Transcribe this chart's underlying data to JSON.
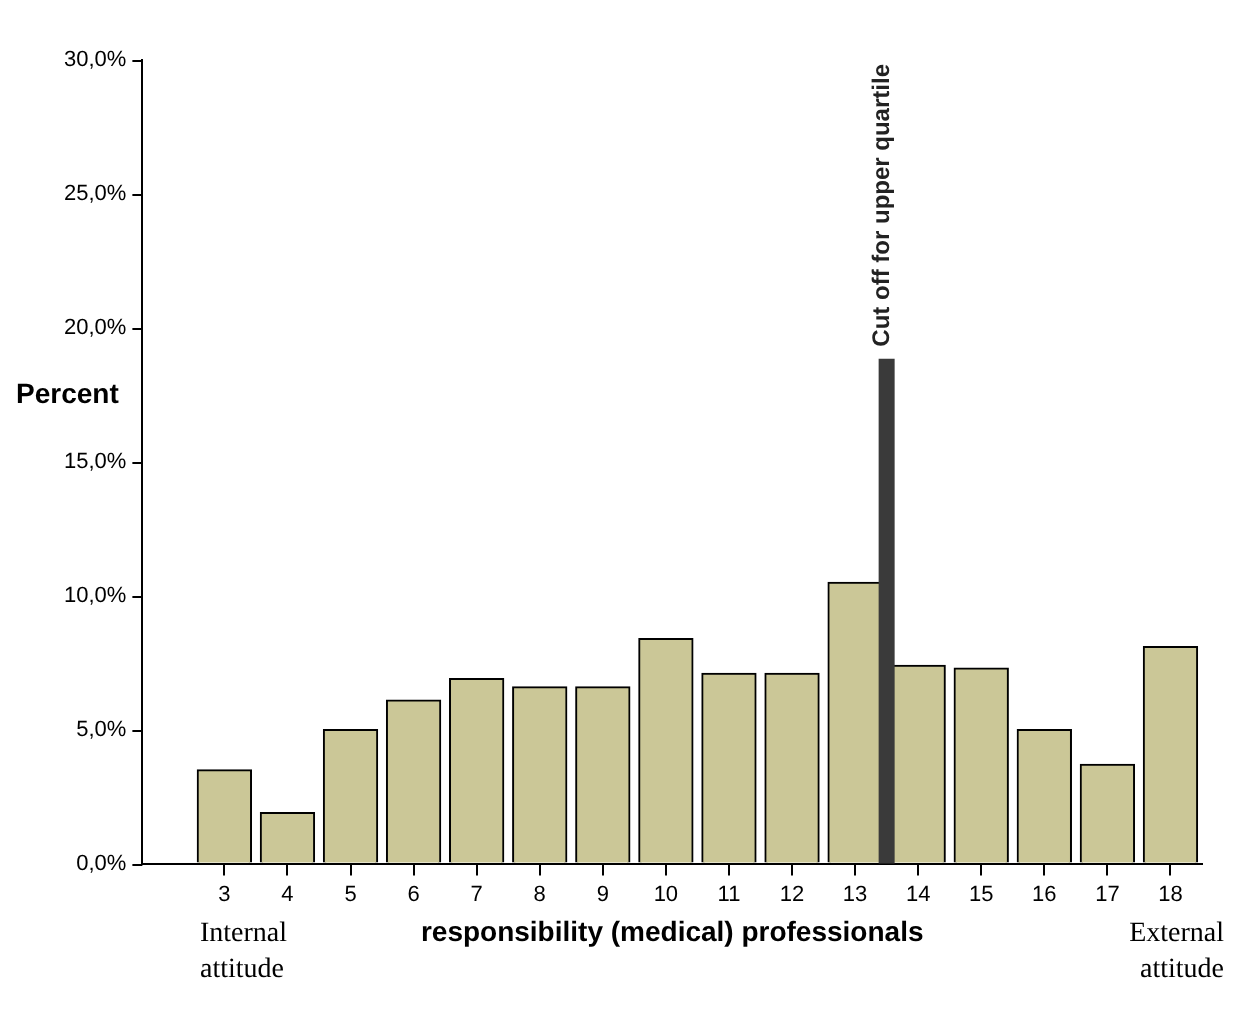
{
  "chart_data": {
    "type": "bar",
    "xlabel": "responsibility (medical) professionals",
    "ylabel": "Percent",
    "x": [
      3,
      4,
      5,
      6,
      7,
      8,
      9,
      10,
      11,
      12,
      13,
      14,
      15,
      16,
      17,
      18
    ],
    "values": [
      3.5,
      1.9,
      5.0,
      6.1,
      6.9,
      6.6,
      6.6,
      8.4,
      7.1,
      7.1,
      10.5,
      7.4,
      7.3,
      5.0,
      3.7,
      8.1
    ],
    "color": "#cbc797",
    "xlim": [
      1.7,
      18.5
    ],
    "xticks": [
      3,
      4,
      5,
      6,
      7,
      8,
      9,
      10,
      11,
      12,
      13,
      14,
      15,
      16,
      17,
      18
    ],
    "ylim": [
      0,
      30
    ],
    "yticks": [
      {
        "value": 0,
        "label": "0,0%"
      },
      {
        "value": 5,
        "label": "5,0%"
      },
      {
        "value": 10,
        "label": "10,0%"
      },
      {
        "value": 15,
        "label": "15,0%"
      },
      {
        "value": 20,
        "label": "20,0%"
      },
      {
        "value": 25,
        "label": "25,0%"
      },
      {
        "value": 30,
        "label": "30,0%"
      }
    ],
    "ref_lines": [
      {
        "axis": "x",
        "value": 13.5,
        "label": "Cut off for upper quartile",
        "color": "#3a3a3a"
      }
    ],
    "annotations": [
      "Internal attitude",
      "External attitude"
    ],
    "legend": false
  }
}
